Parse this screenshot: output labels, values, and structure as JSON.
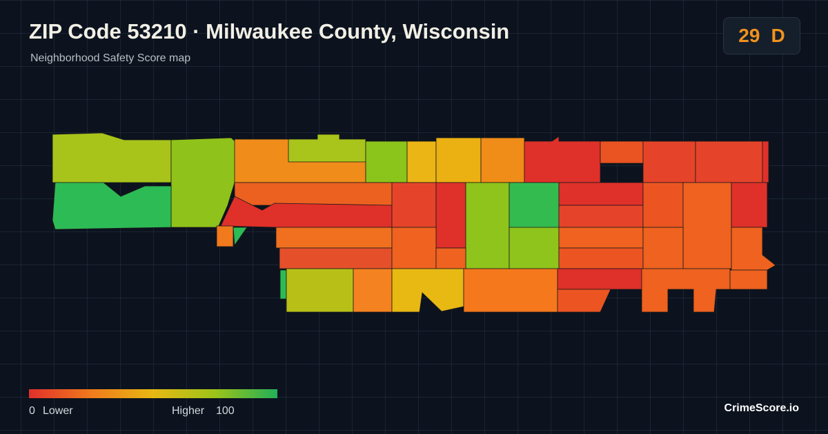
{
  "header": {
    "title": "ZIP Code 53210 · Milwaukee County, Wisconsin",
    "subtitle": "Neighborhood Safety Score map"
  },
  "score": {
    "value": 29,
    "grade": "D"
  },
  "legend": {
    "min": 0,
    "min_label": "Lower",
    "max_label": "Higher",
    "max": 100
  },
  "brand": "CrimeScore.io"
}
